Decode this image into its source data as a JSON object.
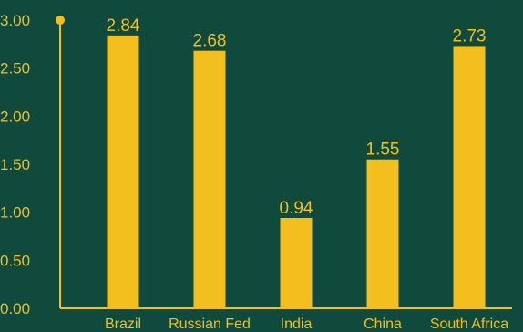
{
  "chart_data": {
    "type": "bar",
    "categories": [
      "Brazil",
      "Russian Fed",
      "India",
      "China",
      "South Africa"
    ],
    "values": [
      2.84,
      2.68,
      0.94,
      1.55,
      2.73
    ],
    "value_labels": [
      "2.84",
      "2.68",
      "0.94",
      "1.55",
      "2.73"
    ],
    "title": "",
    "xlabel": "",
    "ylabel": "",
    "ylim": [
      0,
      3.0
    ],
    "yticks": [
      "0.00",
      "0.50",
      "1.00",
      "1.50",
      "2.00",
      "2.50",
      "3.00"
    ],
    "grid": false,
    "colors": {
      "background": "#0f4a3c",
      "bar": "#f2bf1f",
      "axis": "#f2bf1f",
      "text": "#f2bf1f"
    }
  }
}
